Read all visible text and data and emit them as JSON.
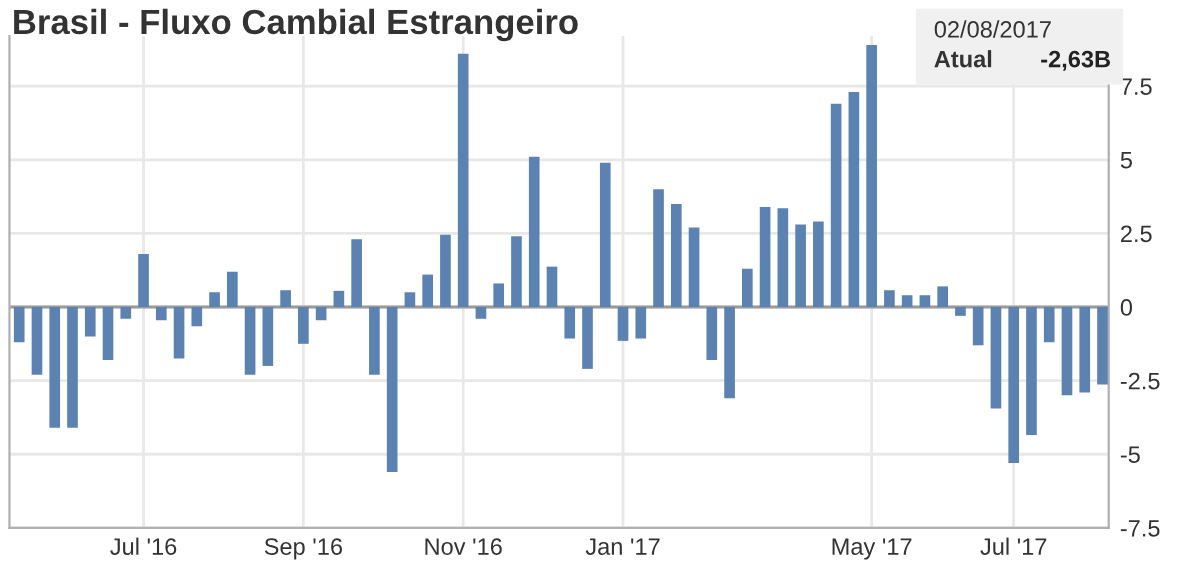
{
  "chart_data": {
    "type": "bar",
    "title": "Brasil - Fluxo Cambial Estrangeiro",
    "categories": [
      null,
      null,
      null,
      null,
      null,
      null,
      null,
      "Jul '16",
      null,
      null,
      null,
      null,
      null,
      null,
      null,
      null,
      "Sep '16",
      null,
      null,
      null,
      null,
      null,
      null,
      null,
      null,
      "Nov '16",
      null,
      null,
      null,
      null,
      null,
      null,
      null,
      null,
      "Jan '17",
      null,
      null,
      null,
      null,
      null,
      null,
      null,
      null,
      null,
      null,
      null,
      null,
      null,
      "May '17",
      null,
      null,
      null,
      null,
      null,
      null,
      null,
      "Jul '17",
      null,
      null,
      null,
      null,
      null
    ],
    "values": [
      -1.2,
      -2.3,
      -4.1,
      -4.1,
      -1.0,
      -1.8,
      -0.4,
      1.8,
      -0.45,
      -1.75,
      -0.65,
      0.5,
      1.2,
      -2.3,
      -2.0,
      0.57,
      -1.25,
      -0.45,
      0.55,
      2.3,
      -2.3,
      -5.6,
      0.5,
      1.1,
      2.45,
      8.6,
      -0.4,
      0.8,
      2.4,
      5.1,
      1.37,
      -1.07,
      -2.1,
      4.9,
      -1.15,
      -1.07,
      4.0,
      3.5,
      2.7,
      -1.8,
      -3.1,
      1.3,
      3.4,
      3.35,
      2.8,
      2.9,
      6.9,
      7.3,
      8.9,
      0.57,
      0.4,
      0.4,
      0.7,
      -0.3,
      -1.3,
      -3.45,
      -5.3,
      -4.35,
      -1.2,
      -3.0,
      -2.9,
      -2.63
    ],
    "color": "#5b82b0",
    "ylim": [
      -7.5,
      9.2
    ],
    "yticks": [
      -7.5,
      -5,
      -2.5,
      0,
      2.5,
      5,
      7.5
    ],
    "grid": true,
    "annotations": [
      "02/08/2017",
      "Atual",
      "-2,63B"
    ]
  }
}
